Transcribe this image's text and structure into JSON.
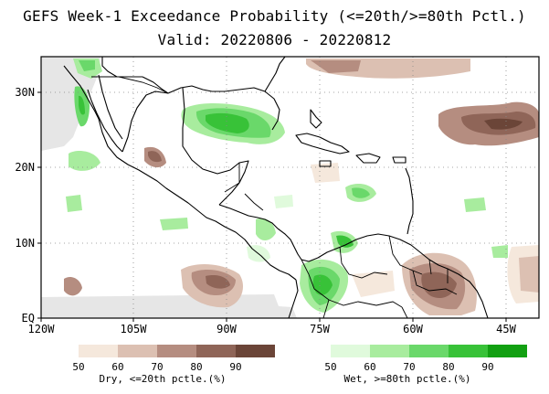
{
  "title": {
    "line1": "GEFS Week-1 Exceedance Probability (<=20th/>=80th Pctl.)",
    "line2": "Valid: 20220806 - 20220812"
  },
  "map": {
    "lon_range": [
      -120,
      -42
    ],
    "lat_range": [
      0,
      35
    ],
    "lat_ticks": [
      "30N",
      "20N",
      "10N",
      "EQ"
    ],
    "lon_ticks": [
      "120W",
      "105W",
      "90W",
      "75W",
      "60W",
      "45W"
    ],
    "gridlines": "dotted"
  },
  "legend": {
    "dry": {
      "levels": [
        "50",
        "60",
        "70",
        "80",
        "90"
      ],
      "colors": [
        "#f5e8dc",
        "#dcc0b2",
        "#b58d80",
        "#8f6558",
        "#6b4538"
      ],
      "caption": "Dry, <=20th pctle.(%)"
    },
    "wet": {
      "levels": [
        "50",
        "60",
        "70",
        "80",
        "90"
      ],
      "colors": [
        "#e0fadc",
        "#a8ec9e",
        "#6ad86a",
        "#38c238",
        "#12a012"
      ],
      "caption": "Wet, >=80th pctle.(%)"
    }
  }
}
